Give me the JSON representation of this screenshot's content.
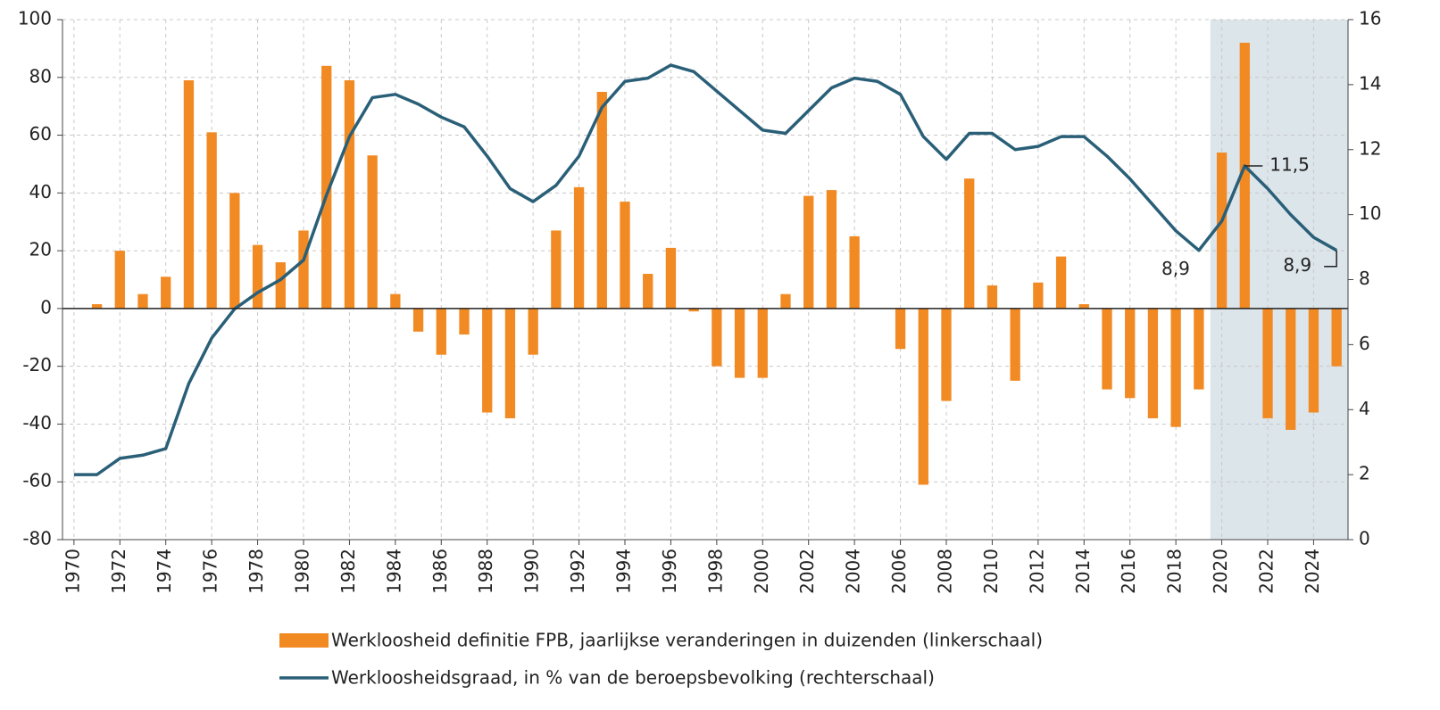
{
  "chart_data": {
    "type": "bar_line",
    "categories": [
      "1970",
      null,
      "1972",
      null,
      "1974",
      null,
      "1976",
      null,
      "1978",
      null,
      "1980",
      null,
      "1982",
      null,
      "1984",
      null,
      "1986",
      null,
      "1988",
      null,
      "1990",
      null,
      "1992",
      null,
      "1994",
      null,
      "1996",
      null,
      "1998",
      null,
      "2000",
      null,
      "2002",
      null,
      "2004",
      null,
      "2006",
      null,
      "2008",
      null,
      "2010",
      null,
      "2012",
      null,
      "2014",
      null,
      "2016",
      null,
      "2018",
      null,
      "2020",
      null,
      "2022",
      null,
      "2024",
      null
    ],
    "series": [
      {
        "name": "Werkloosheid definitie FPB, jaarlijkse veranderingen in duizenden (linkerschaal)",
        "type": "bar",
        "color": "#f28a24",
        "values": [
          0,
          1.5,
          20,
          5,
          11,
          79,
          61,
          40,
          22,
          16,
          27,
          84,
          79,
          53,
          5,
          -8,
          -16,
          -9,
          -36,
          -38,
          -16,
          27,
          42,
          75,
          37,
          12,
          21,
          -1,
          -20,
          -24,
          -24,
          5,
          39,
          41,
          25,
          0,
          -14,
          -61,
          -32,
          45,
          8,
          -25,
          9,
          18,
          1.5,
          -28,
          -31,
          -38,
          -41,
          -28,
          54,
          92,
          -38,
          -42,
          -36,
          -20
        ]
      },
      {
        "name": "Werkloosheidsgraad, in % van de beroepsbevolking (rechterschaal)",
        "type": "line",
        "axis": "y2",
        "color": "#2a5f78",
        "values": [
          2.0,
          2.0,
          2.5,
          2.6,
          2.8,
          4.8,
          6.2,
          7.1,
          7.6,
          8.0,
          8.6,
          10.6,
          12.4,
          13.6,
          13.7,
          13.4,
          13.0,
          12.7,
          11.8,
          10.8,
          10.4,
          10.9,
          11.8,
          13.3,
          14.1,
          14.2,
          14.6,
          14.4,
          13.8,
          13.2,
          12.6,
          12.5,
          13.2,
          13.9,
          14.2,
          14.1,
          13.7,
          12.4,
          11.7,
          12.5,
          12.5,
          12.0,
          12.1,
          12.4,
          12.4,
          11.8,
          11.1,
          10.3,
          9.5,
          8.9,
          9.8,
          11.5,
          10.8,
          10.0,
          9.3,
          8.9
        ]
      }
    ],
    "annotations": [
      "11,5",
      "8,9",
      "8,9"
    ],
    "ylim": [
      -80,
      100
    ],
    "yticks": [
      -80,
      -60,
      -40,
      -20,
      0,
      20,
      40,
      60,
      80,
      100
    ],
    "y2lim": [
      0,
      16
    ],
    "y2ticks": [
      0,
      2,
      4,
      6,
      8,
      10,
      12,
      14,
      16
    ],
    "grid": true
  }
}
